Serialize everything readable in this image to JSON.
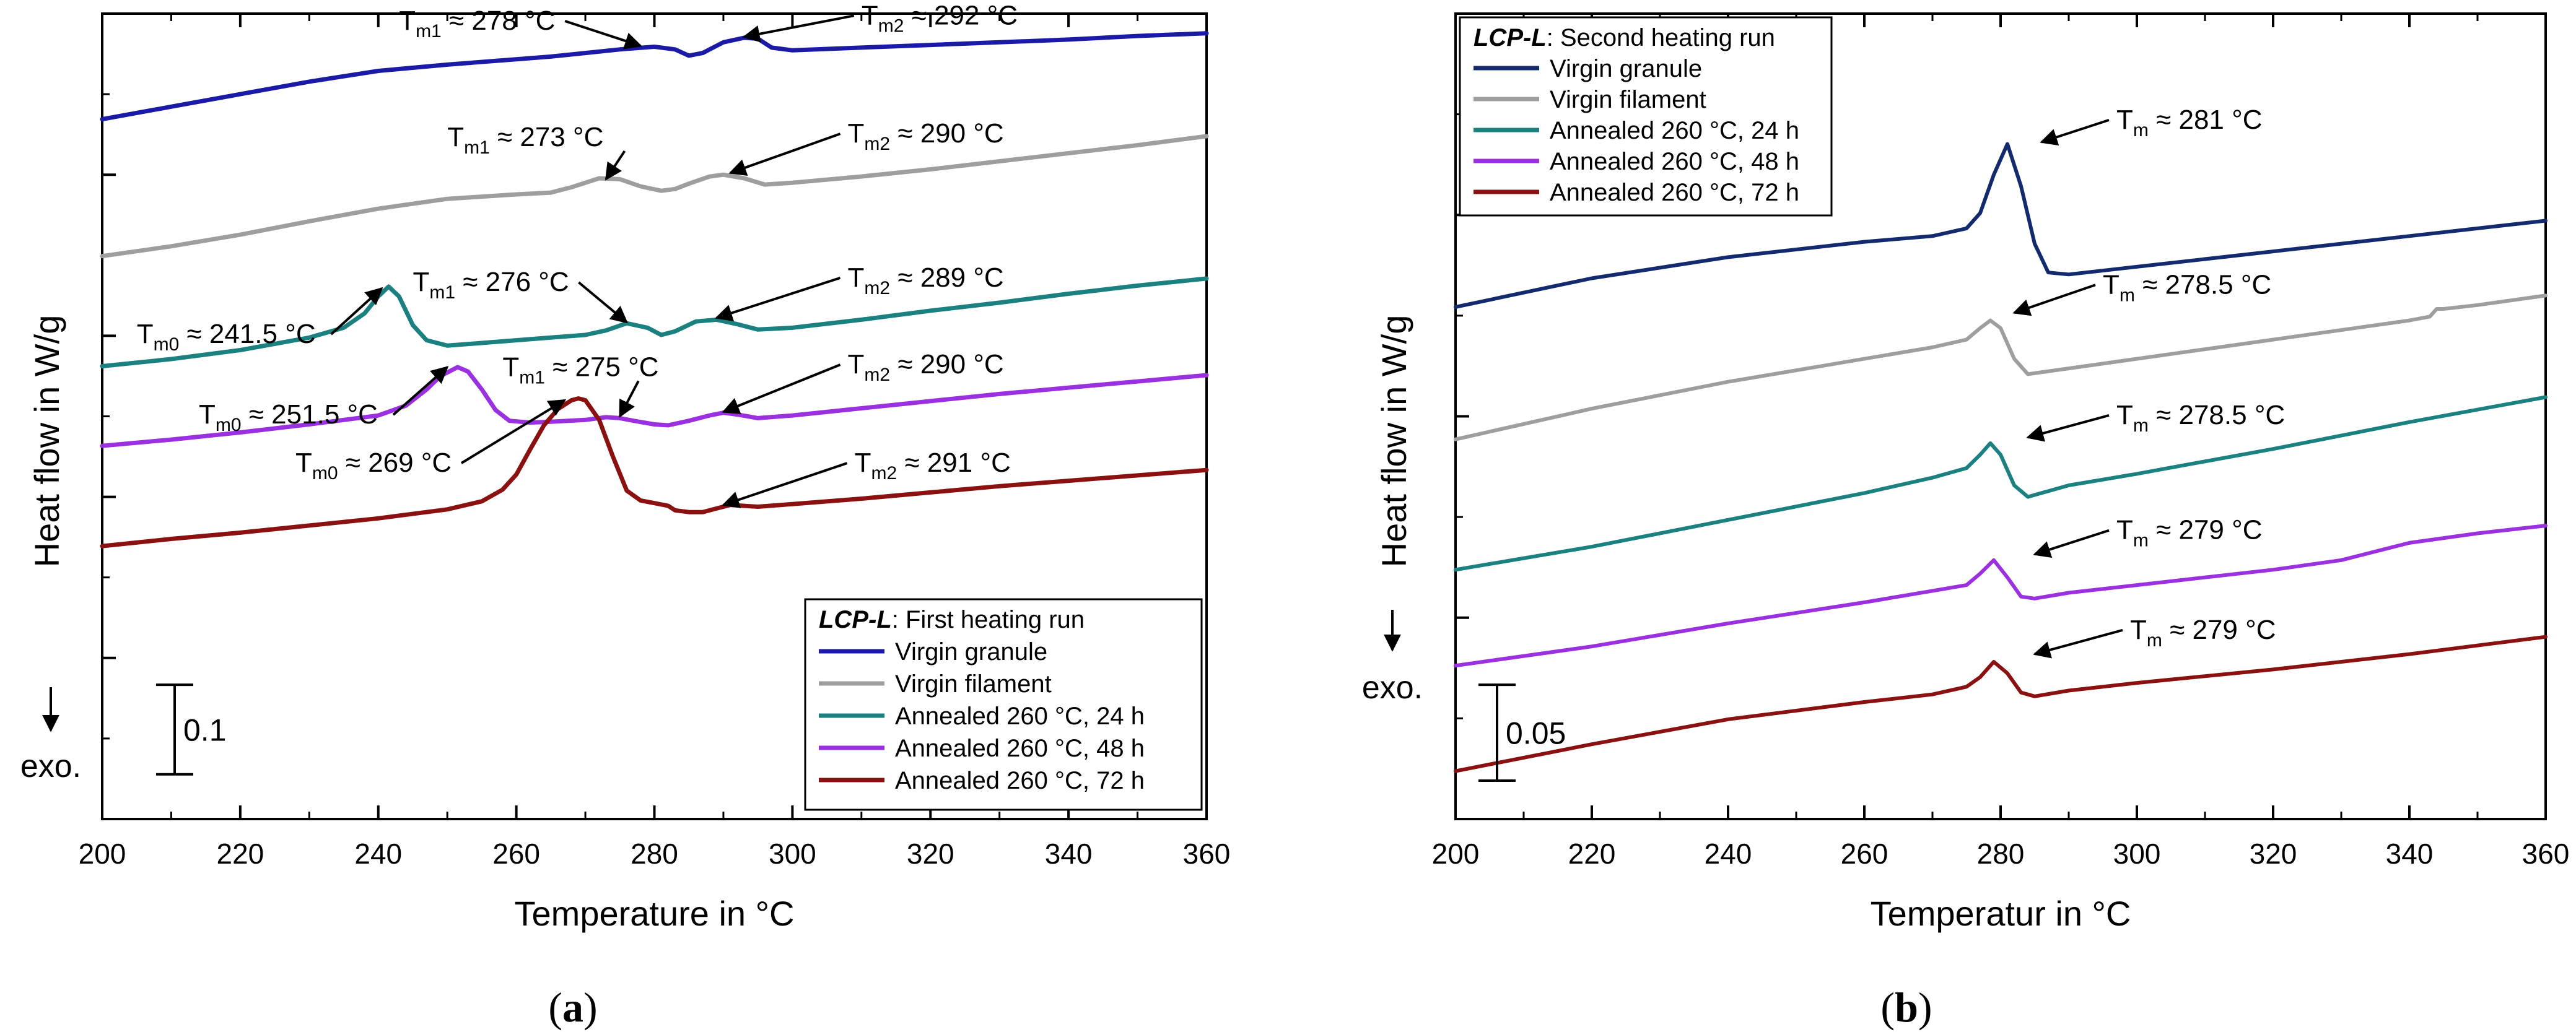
{
  "figure": {
    "caption_a": "a",
    "caption_b": "b"
  },
  "chart_data": [
    {
      "id": "a",
      "type": "line",
      "xlabel": "Temperature in °C",
      "ylabel": "Heat flow in W/g",
      "xlim": [
        200,
        360
      ],
      "xticks": [
        200,
        220,
        240,
        260,
        280,
        300,
        320,
        340,
        360
      ],
      "y_units": "W/g (curves vertically offset; no numeric y tick labels)",
      "ylim": [
        -0.05,
        0.85
      ],
      "exo_label": "exo.",
      "scalebar": {
        "label": "0.1",
        "value": 0.1,
        "from": 0.0,
        "to": 0.1
      },
      "legend": {
        "title_italic": "LCP-L",
        "title_rest": ": First heating run",
        "entries": [
          "Virgin granule",
          "Virgin filament",
          "Annealed 260 °C, 24 h",
          "Annealed 260 °C, 48 h",
          "Annealed 260 °C, 72 h"
        ]
      },
      "series": [
        {
          "name": "Virgin granule",
          "color": "#1a1aa6",
          "x": [
            200,
            210,
            220,
            230,
            240,
            250,
            260,
            265,
            270,
            275,
            280,
            283,
            285,
            287,
            290,
            293,
            295,
            297,
            300,
            310,
            320,
            330,
            340,
            350,
            360
          ],
          "y": [
            0.732,
            0.746,
            0.76,
            0.774,
            0.786,
            0.793,
            0.799,
            0.802,
            0.806,
            0.81,
            0.813,
            0.81,
            0.803,
            0.806,
            0.818,
            0.823,
            0.822,
            0.812,
            0.809,
            0.812,
            0.815,
            0.818,
            0.821,
            0.825,
            0.828
          ]
        },
        {
          "name": "Virgin filament",
          "color": "#9e9e9e",
          "x": [
            200,
            210,
            220,
            230,
            240,
            250,
            260,
            265,
            268,
            272,
            275,
            278,
            281,
            283,
            285,
            288,
            290,
            293,
            296,
            300,
            310,
            320,
            330,
            340,
            350,
            360
          ],
          "y": [
            0.579,
            0.59,
            0.603,
            0.618,
            0.632,
            0.643,
            0.648,
            0.65,
            0.656,
            0.666,
            0.665,
            0.657,
            0.652,
            0.654,
            0.66,
            0.668,
            0.67,
            0.666,
            0.659,
            0.661,
            0.668,
            0.676,
            0.685,
            0.694,
            0.703,
            0.713
          ]
        },
        {
          "name": "Annealed 260 °C, 24 h",
          "color": "#1a8080",
          "x": [
            200,
            210,
            220,
            230,
            235,
            238,
            240,
            241.5,
            243,
            245,
            247,
            250,
            255,
            260,
            265,
            270,
            273,
            276,
            279,
            281,
            283,
            286,
            289,
            292,
            295,
            300,
            310,
            320,
            330,
            340,
            350,
            360
          ],
          "y": [
            0.456,
            0.464,
            0.474,
            0.488,
            0.499,
            0.515,
            0.534,
            0.545,
            0.534,
            0.502,
            0.485,
            0.479,
            0.482,
            0.485,
            0.488,
            0.491,
            0.496,
            0.504,
            0.499,
            0.491,
            0.495,
            0.506,
            0.508,
            0.503,
            0.497,
            0.499,
            0.508,
            0.518,
            0.527,
            0.537,
            0.546,
            0.554
          ]
        },
        {
          "name": "Annealed 260 °C, 48 h",
          "color": "#9b30e0",
          "x": [
            200,
            210,
            220,
            230,
            240,
            244,
            247,
            249,
            251.5,
            253,
            255,
            257,
            259,
            262,
            265,
            270,
            273,
            275,
            277,
            280,
            282,
            285,
            288,
            290,
            292,
            295,
            300,
            310,
            320,
            330,
            340,
            350,
            360
          ],
          "y": [
            0.367,
            0.374,
            0.382,
            0.391,
            0.401,
            0.412,
            0.43,
            0.445,
            0.455,
            0.45,
            0.43,
            0.407,
            0.395,
            0.393,
            0.394,
            0.396,
            0.399,
            0.398,
            0.395,
            0.391,
            0.39,
            0.395,
            0.401,
            0.404,
            0.402,
            0.398,
            0.401,
            0.409,
            0.417,
            0.425,
            0.432,
            0.439,
            0.446
          ]
        },
        {
          "name": "Annealed 260 °C, 72 h",
          "color": "#8b1010",
          "x": [
            200,
            210,
            220,
            230,
            240,
            250,
            255,
            258,
            260,
            262,
            264,
            266,
            268,
            269,
            270,
            272,
            274,
            276,
            278,
            280,
            282,
            283,
            285,
            287,
            289,
            291,
            293,
            295,
            300,
            310,
            320,
            330,
            340,
            350,
            360
          ],
          "y": [
            0.255,
            0.263,
            0.27,
            0.278,
            0.286,
            0.296,
            0.305,
            0.318,
            0.335,
            0.363,
            0.39,
            0.408,
            0.418,
            0.42,
            0.418,
            0.396,
            0.355,
            0.317,
            0.306,
            0.303,
            0.3,
            0.295,
            0.293,
            0.293,
            0.297,
            0.301,
            0.3,
            0.299,
            0.302,
            0.308,
            0.315,
            0.322,
            0.328,
            0.334,
            0.34
          ]
        }
      ],
      "annotations": [
        {
          "sym": "T",
          "sub": "m1",
          "text": " ≈ 278 °C",
          "tx": 243,
          "ty": 0.832,
          "ax": 278,
          "ay": 0.814
        },
        {
          "sym": "T",
          "sub": "m2",
          "text": " ≈ 292 °C",
          "tx": 310,
          "ty": 0.838,
          "ax": 293,
          "ay": 0.824
        },
        {
          "sym": "T",
          "sub": "m1",
          "text": " ≈ 273 °C",
          "tx": 250,
          "ty": 0.702,
          "ax": 273,
          "ay": 0.665
        },
        {
          "sym": "T",
          "sub": "m2",
          "text": " ≈ 290 °C",
          "tx": 308,
          "ty": 0.706,
          "ax": 291,
          "ay": 0.672
        },
        {
          "sym": "T",
          "sub": "m1",
          "text": " ≈ 276 °C",
          "tx": 245,
          "ty": 0.54,
          "ax": 276,
          "ay": 0.505
        },
        {
          "sym": "T",
          "sub": "m2",
          "text": " ≈ 289 °C",
          "tx": 308,
          "ty": 0.545,
          "ax": 289,
          "ay": 0.51
        },
        {
          "sym": "T",
          "sub": "m0",
          "text": " ≈ 241.5 °C",
          "tx": 205,
          "ty": 0.482,
          "ax": 240.5,
          "ay": 0.543
        },
        {
          "sym": "T",
          "sub": "m0",
          "text": " ≈ 251.5 °C",
          "tx": 214,
          "ty": 0.392,
          "ax": 250,
          "ay": 0.455
        },
        {
          "sym": "T",
          "sub": "m1",
          "text": " ≈ 275 °C",
          "tx": 258,
          "ty": 0.445,
          "ax": 275,
          "ay": 0.4
        },
        {
          "sym": "T",
          "sub": "m2",
          "text": " ≈ 290 °C",
          "tx": 308,
          "ty": 0.448,
          "ax": 290,
          "ay": 0.405
        },
        {
          "sym": "T",
          "sub": "m0",
          "text": " ≈ 269 °C",
          "tx": 228,
          "ty": 0.338,
          "ax": 267,
          "ay": 0.418
        },
        {
          "sym": "T",
          "sub": "m2",
          "text": " ≈ 291 °C",
          "tx": 309,
          "ty": 0.338,
          "ax": 290,
          "ay": 0.301
        }
      ]
    },
    {
      "id": "b",
      "type": "line",
      "xlabel": "Temperatur in °C",
      "ylabel": "Heat flow in W/g",
      "xlim": [
        200,
        360
      ],
      "xticks": [
        200,
        220,
        240,
        260,
        280,
        300,
        320,
        340,
        360
      ],
      "y_units": "W/g (curves vertically offset; no numeric y tick labels)",
      "ylim": [
        -0.02,
        0.4
      ],
      "exo_label": "exo.",
      "scalebar": {
        "label": "0.05",
        "value": 0.05,
        "from": 0.0,
        "to": 0.05
      },
      "legend": {
        "title_italic": "LCP-L",
        "title_rest": ": Second heating run",
        "entries": [
          "Virgin granule",
          "Virgin filament",
          "Annealed 260 °C, 24 h",
          "Annealed 260 °C, 48 h",
          "Annealed 260 °C, 72 h"
        ]
      },
      "series": [
        {
          "name": "Virgin granule",
          "color": "#142a6e",
          "x": [
            200,
            220,
            240,
            260,
            270,
            275,
            277,
            279,
            281,
            283,
            285,
            287,
            290,
            300,
            320,
            340,
            360
          ],
          "y": [
            0.247,
            0.262,
            0.273,
            0.281,
            0.284,
            0.288,
            0.296,
            0.316,
            0.332,
            0.31,
            0.28,
            0.265,
            0.264,
            0.268,
            0.276,
            0.284,
            0.292
          ]
        },
        {
          "name": "Virgin filament",
          "color": "#9e9e9e",
          "x": [
            200,
            220,
            240,
            260,
            270,
            275,
            277,
            278.5,
            280,
            282,
            284,
            290,
            300,
            320,
            340,
            343,
            344,
            345,
            350,
            360
          ],
          "y": [
            0.178,
            0.194,
            0.208,
            0.22,
            0.226,
            0.23,
            0.236,
            0.24,
            0.236,
            0.22,
            0.212,
            0.215,
            0.22,
            0.23,
            0.24,
            0.242,
            0.246,
            0.246,
            0.248,
            0.253
          ]
        },
        {
          "name": "Annealed 260 °C, 24 h",
          "color": "#1a8080",
          "x": [
            200,
            220,
            240,
            260,
            270,
            275,
            277,
            278.5,
            280,
            282,
            284,
            290,
            300,
            320,
            340,
            360
          ],
          "y": [
            0.11,
            0.122,
            0.136,
            0.15,
            0.158,
            0.163,
            0.17,
            0.176,
            0.17,
            0.154,
            0.148,
            0.154,
            0.16,
            0.173,
            0.187,
            0.2
          ]
        },
        {
          "name": "Annealed 260 °C, 48 h",
          "color": "#9b30e0",
          "x": [
            200,
            220,
            240,
            260,
            270,
            275,
            277,
            279,
            281,
            283,
            285,
            290,
            300,
            320,
            330,
            340,
            350,
            360
          ],
          "y": [
            0.06,
            0.07,
            0.082,
            0.093,
            0.099,
            0.102,
            0.108,
            0.115,
            0.106,
            0.096,
            0.095,
            0.098,
            0.102,
            0.11,
            0.115,
            0.124,
            0.129,
            0.133
          ]
        },
        {
          "name": "Annealed 260 °C, 72 h",
          "color": "#8b1010",
          "x": [
            200,
            210,
            220,
            240,
            260,
            270,
            275,
            277,
            279,
            281,
            283,
            285,
            290,
            300,
            320,
            340,
            360
          ],
          "y": [
            0.005,
            0.012,
            0.019,
            0.032,
            0.041,
            0.045,
            0.049,
            0.054,
            0.062,
            0.056,
            0.046,
            0.044,
            0.047,
            0.051,
            0.058,
            0.066,
            0.075
          ]
        }
      ],
      "annotations": [
        {
          "sym": "T",
          "sub": "m",
          "text": " ≈ 281 °C",
          "tx": 297,
          "ty": 0.34,
          "ax": 286,
          "ay": 0.333
        },
        {
          "sym": "T",
          "sub": "m",
          "text": " ≈ 278.5 °C",
          "tx": 295,
          "ty": 0.254,
          "ax": 282,
          "ay": 0.244
        },
        {
          "sym": "T",
          "sub": "m",
          "text": " ≈ 278.5 °C",
          "tx": 297,
          "ty": 0.186,
          "ax": 284,
          "ay": 0.179
        },
        {
          "sym": "T",
          "sub": "m",
          "text": " ≈ 279 °C",
          "tx": 297,
          "ty": 0.126,
          "ax": 285,
          "ay": 0.118
        },
        {
          "sym": "T",
          "sub": "m",
          "text": " ≈ 279 °C",
          "tx": 299,
          "ty": 0.074,
          "ax": 285,
          "ay": 0.066
        }
      ]
    }
  ]
}
